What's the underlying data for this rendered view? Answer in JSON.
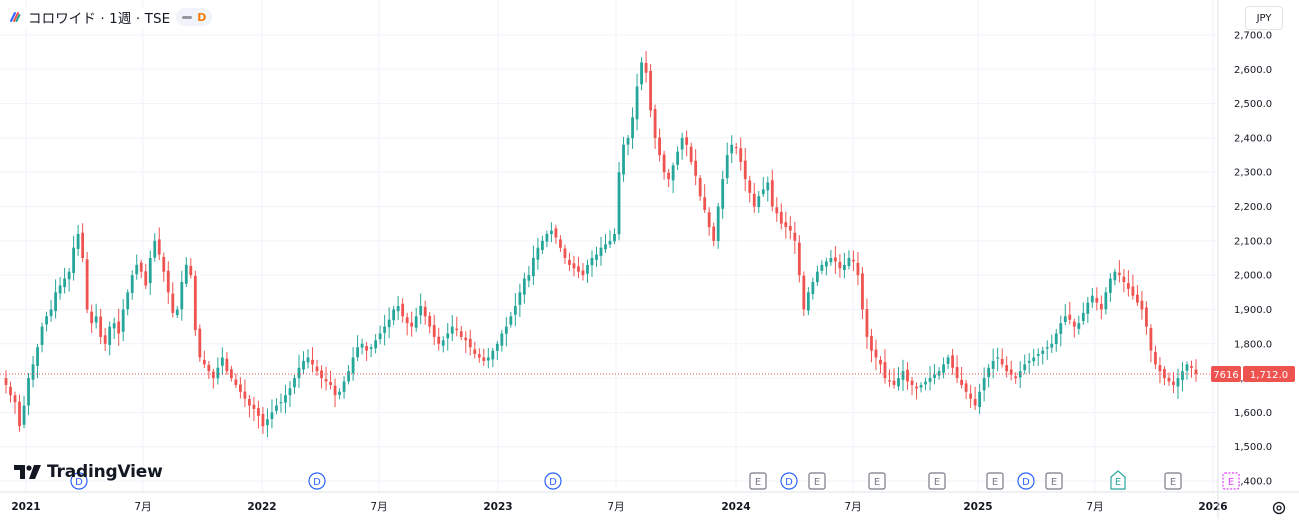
{
  "header": {
    "title": "コロワイド · 1週 · TSE",
    "interval_badge": "D"
  },
  "currency": "JPY",
  "branding": "TradingView",
  "price_axis": {
    "ticks": [
      "2,700.0",
      "2,600.0",
      "2,500.0",
      "2,400.0",
      "2,300.0",
      "2,200.0",
      "2,100.0",
      "2,000.0",
      "1,900.0",
      "1,800.0",
      "1,700.0",
      "1,600.0",
      "1,500.0",
      "1,400.0"
    ],
    "last_price_tag": "7616",
    "last_price_value": "1,712.0"
  },
  "time_axis": {
    "labels": [
      "2021",
      "7月",
      "2022",
      "7月",
      "2023",
      "7月",
      "2024",
      "7月",
      "2025",
      "7月",
      "2026"
    ]
  },
  "events": [
    {
      "type": "D",
      "label": "D"
    },
    {
      "type": "D",
      "label": "D"
    },
    {
      "type": "D",
      "label": "D"
    },
    {
      "type": "E",
      "label": "E"
    },
    {
      "type": "D",
      "label": "D"
    },
    {
      "type": "E",
      "label": "E"
    },
    {
      "type": "E",
      "label": "E"
    },
    {
      "type": "E",
      "label": "E"
    },
    {
      "type": "E",
      "label": "E"
    },
    {
      "type": "D",
      "label": "D"
    },
    {
      "type": "E",
      "label": "E"
    },
    {
      "type": "E",
      "label": "E"
    },
    {
      "type": "E",
      "label": "E"
    },
    {
      "type": "E",
      "label": "E"
    }
  ],
  "chart_data": {
    "type": "candlestick",
    "interval": "1週",
    "ylim": [
      1400,
      2700
    ],
    "grid": true,
    "colors": {
      "up": "#26a69a",
      "down": "#ef5350",
      "last_price": "#ef5350",
      "dividend": "#2962ff",
      "earnings": "#787b86",
      "earnings_next": "#e040fb",
      "earnings_green": "#26a69a"
    },
    "close_series_approx": [
      1680,
      1650,
      1630,
      1560,
      1620,
      1700,
      1740,
      1790,
      1850,
      1880,
      1900,
      1950,
      1970,
      1990,
      2010,
      2080,
      2120,
      2050,
      1900,
      1860,
      1880,
      1820,
      1800,
      1850,
      1860,
      1830,
      1900,
      1950,
      2000,
      2030,
      2010,
      1970,
      2050,
      2100,
      2060,
      2010,
      1950,
      1890,
      1900,
      1980,
      2030,
      2000,
      1840,
      1760,
      1740,
      1720,
      1700,
      1730,
      1760,
      1720,
      1700,
      1680,
      1660,
      1640,
      1620,
      1610,
      1590,
      1560,
      1580,
      1600,
      1620,
      1630,
      1650,
      1670,
      1700,
      1730,
      1750,
      1760,
      1740,
      1720,
      1700,
      1690,
      1680,
      1650,
      1660,
      1690,
      1720,
      1760,
      1790,
      1800,
      1780,
      1790,
      1810,
      1830,
      1850,
      1870,
      1900,
      1910,
      1880,
      1860,
      1850,
      1880,
      1910,
      1880,
      1850,
      1820,
      1800,
      1810,
      1830,
      1850,
      1840,
      1820,
      1810,
      1790,
      1770,
      1760,
      1750,
      1760,
      1780,
      1800,
      1830,
      1850,
      1880,
      1910,
      1950,
      1990,
      2000,
      2050,
      2080,
      2100,
      2120,
      2130,
      2110,
      2080,
      2050,
      2030,
      2020,
      2010,
      2000,
      2030,
      2050,
      2060,
      2080,
      2090,
      2100,
      2120,
      2300,
      2380,
      2400,
      2460,
      2550,
      2620,
      2590,
      2480,
      2400,
      2350,
      2300,
      2280,
      2320,
      2360,
      2400,
      2380,
      2330,
      2290,
      2230,
      2190,
      2140,
      2100,
      2200,
      2280,
      2350,
      2380,
      2370,
      2330,
      2280,
      2240,
      2200,
      2230,
      2250,
      2270,
      2200,
      2180,
      2150,
      2140,
      2130,
      2100,
      2000,
      1900,
      1950,
      1980,
      2010,
      2030,
      2040,
      2050,
      2040,
      2020,
      2030,
      2050,
      2040,
      2000,
      1900,
      1820,
      1780,
      1760,
      1740,
      1700,
      1690,
      1680,
      1700,
      1720,
      1690,
      1680,
      1670,
      1680,
      1690,
      1700,
      1710,
      1720,
      1740,
      1760,
      1730,
      1700,
      1680,
      1660,
      1640,
      1620,
      1660,
      1700,
      1730,
      1750,
      1760,
      1740,
      1720,
      1710,
      1700,
      1720,
      1740,
      1750,
      1760,
      1770,
      1780,
      1790,
      1800,
      1830,
      1860,
      1880,
      1870,
      1850,
      1860,
      1890,
      1920,
      1940,
      1920,
      1900,
      1950,
      1990,
      2010,
      2000,
      1980,
      1960,
      1940,
      1920,
      1900,
      1850,
      1780,
      1740,
      1720,
      1700,
      1690,
      1680,
      1700,
      1720,
      1740,
      1730,
      1712
    ]
  }
}
